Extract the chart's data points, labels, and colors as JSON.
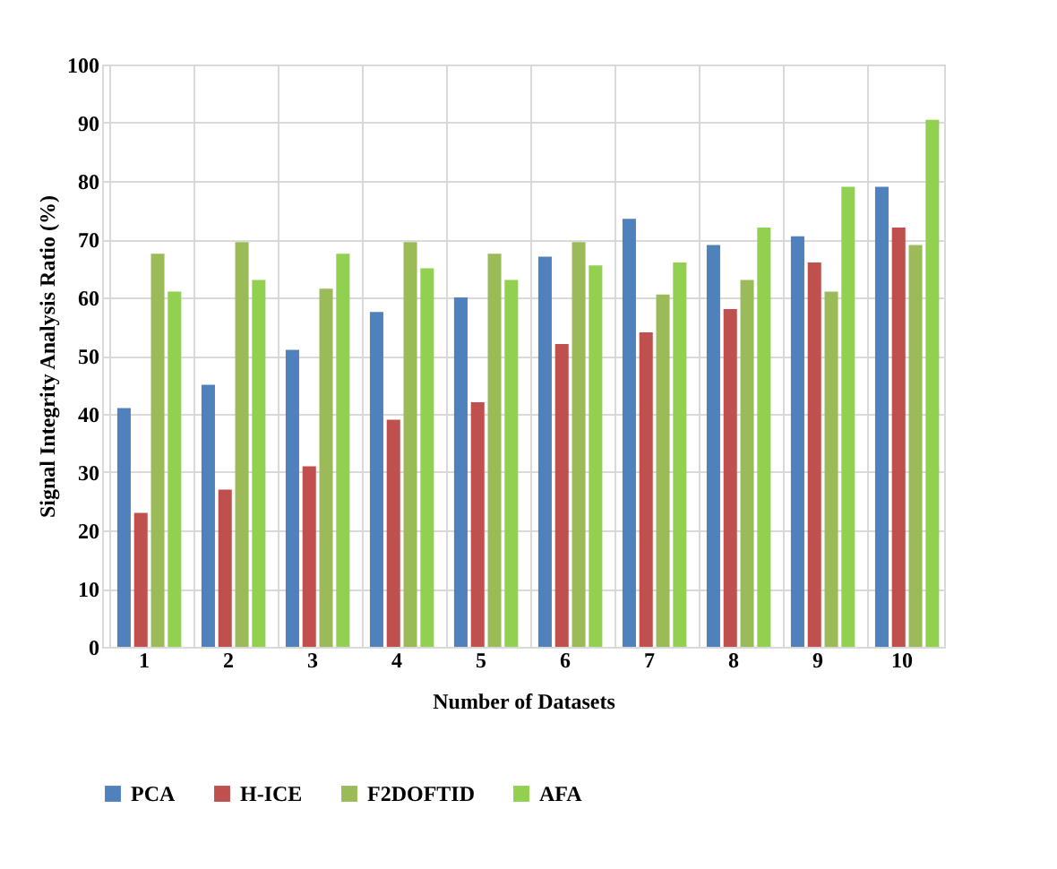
{
  "chart_data": {
    "type": "bar",
    "xlabel": "Number of Datasets",
    "ylabel": "Signal Integrity Analysis Ratio (%)",
    "categories": [
      "1",
      "2",
      "3",
      "4",
      "5",
      "6",
      "7",
      "8",
      "9",
      "10"
    ],
    "series": [
      {
        "name": "PCA",
        "color": "#4f81bd",
        "values": [
          41,
          45,
          51,
          57.5,
          60,
          67,
          73.5,
          69,
          70.5,
          79
        ]
      },
      {
        "name": "H-ICE",
        "color": "#c0504d",
        "values": [
          23,
          27,
          31,
          39,
          42,
          52,
          54,
          58,
          66,
          72
        ]
      },
      {
        "name": "F2DOFTID",
        "color": "#9bbb59",
        "values": [
          67.5,
          69.5,
          61.5,
          69.5,
          67.5,
          69.5,
          60.5,
          63,
          61,
          69
        ]
      },
      {
        "name": "AFA",
        "color": "#92d050",
        "values": [
          61,
          63,
          67.5,
          65,
          63,
          65.5,
          66,
          72,
          79,
          90.5
        ]
      }
    ],
    "ylim": [
      0,
      100
    ],
    "yticks": [
      0,
      10,
      20,
      30,
      40,
      50,
      60,
      70,
      80,
      90,
      100
    ],
    "grid": true,
    "legend": "bottom"
  }
}
